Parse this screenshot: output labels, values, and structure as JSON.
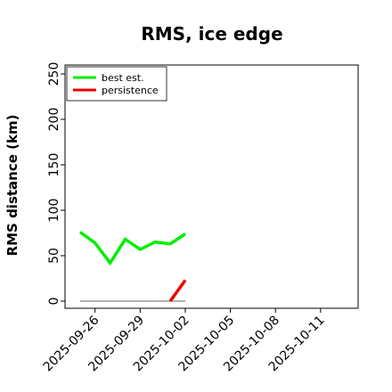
{
  "chart_data": {
    "type": "line",
    "title": "RMS, ice edge",
    "ylabel": "RMS distance (km)",
    "xlabel": "",
    "ylim": [
      0,
      250
    ],
    "xlim": [
      "2025-09-24T00:00",
      "2025-10-13T12:00"
    ],
    "grid": false,
    "legend_position": "top-left",
    "yticks": [
      0,
      50,
      100,
      150,
      200,
      250
    ],
    "xticks": [
      "2025-09-26",
      "2025-09-29",
      "2025-10-02",
      "2025-10-05",
      "2025-10-08",
      "2025-10-11"
    ],
    "series": [
      {
        "name": "best est.",
        "color": "#00ee00",
        "points": [
          [
            "2025-09-25",
            76
          ],
          [
            "2025-09-26",
            64
          ],
          [
            "2025-09-27",
            42
          ],
          [
            "2025-09-28",
            68
          ],
          [
            "2025-09-29",
            57
          ],
          [
            "2025-09-30",
            65
          ],
          [
            "2025-10-01",
            63
          ],
          [
            "2025-10-02",
            74
          ]
        ]
      },
      {
        "name": "persistence",
        "color": "#ee0000",
        "points": [
          [
            "2025-10-01",
            0
          ],
          [
            "2025-10-02",
            23
          ]
        ]
      }
    ],
    "baseline": {
      "color": "#808080",
      "points": [
        [
          "2025-09-25",
          0
        ],
        [
          "2025-10-02",
          0
        ]
      ]
    }
  }
}
